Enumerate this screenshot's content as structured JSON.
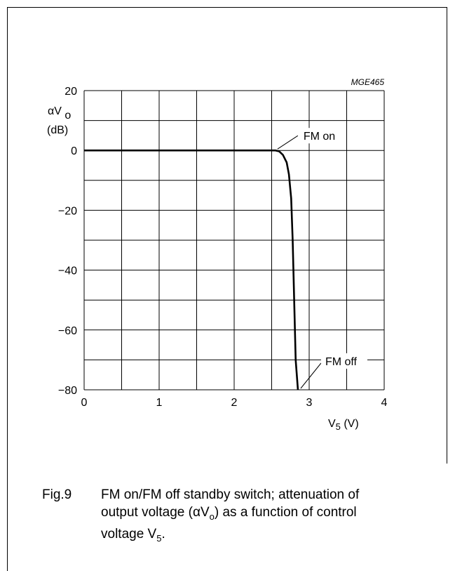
{
  "chart_data": {
    "type": "line",
    "code": "MGE465",
    "ylabel": "αVo",
    "ylabel_unit": "(dB)",
    "xlabel": "V5 (V)",
    "xlim": [
      0,
      4
    ],
    "ylim": [
      -80,
      20
    ],
    "x_ticks": [
      "0",
      "1",
      "2",
      "3",
      "4"
    ],
    "y_ticks": [
      "20",
      "0",
      "−20",
      "−40",
      "−60",
      "−80"
    ],
    "x_tick_values": [
      0,
      1,
      2,
      3,
      4
    ],
    "y_tick_values": [
      20,
      0,
      -20,
      -40,
      -60,
      -80
    ],
    "grid": true,
    "series": [
      {
        "x": [
          0,
          2.5,
          2.55,
          2.6,
          2.65,
          2.7,
          2.73,
          2.76,
          2.78,
          2.8,
          2.82,
          2.85
        ],
        "y": [
          0,
          0,
          0,
          -0.3,
          -1.5,
          -4,
          -8,
          -16,
          -30,
          -50,
          -70,
          -80
        ]
      }
    ],
    "annotations": [
      {
        "text": "FM on",
        "x": 2.55,
        "y": 0
      },
      {
        "text": "FM off",
        "x": 2.85,
        "y": -80
      }
    ]
  },
  "caption": {
    "fig_no": "Fig.9",
    "line1": "FM on/FM off standby switch; attenuation of",
    "line2_a": "output voltage (αV",
    "line2_sub": "o",
    "line2_b": ") as a function of control",
    "line3_a": "voltage V",
    "line3_sub": "5",
    "line3_b": "."
  }
}
